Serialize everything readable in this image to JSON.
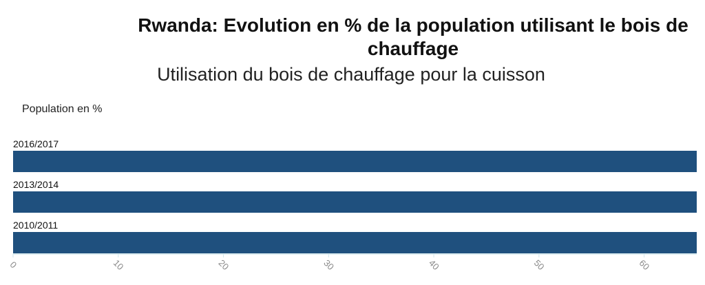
{
  "chart_data": {
    "type": "bar",
    "orientation": "horizontal",
    "title": "Rwanda: Evolution en % de la population utilisant le bois de chauffage",
    "subtitle": "Utilisation du bois de chauffage pour la cuisson",
    "ylabel": "Population en %",
    "categories": [
      "2016/2017",
      "2013/2014",
      "2010/2011"
    ],
    "values": [
      65,
      65,
      65
    ],
    "xlim": [
      0,
      65
    ],
    "x_ticks": [
      0,
      10,
      20,
      30,
      40,
      50,
      60
    ],
    "bar_color": "#1f507e",
    "grid": false
  }
}
